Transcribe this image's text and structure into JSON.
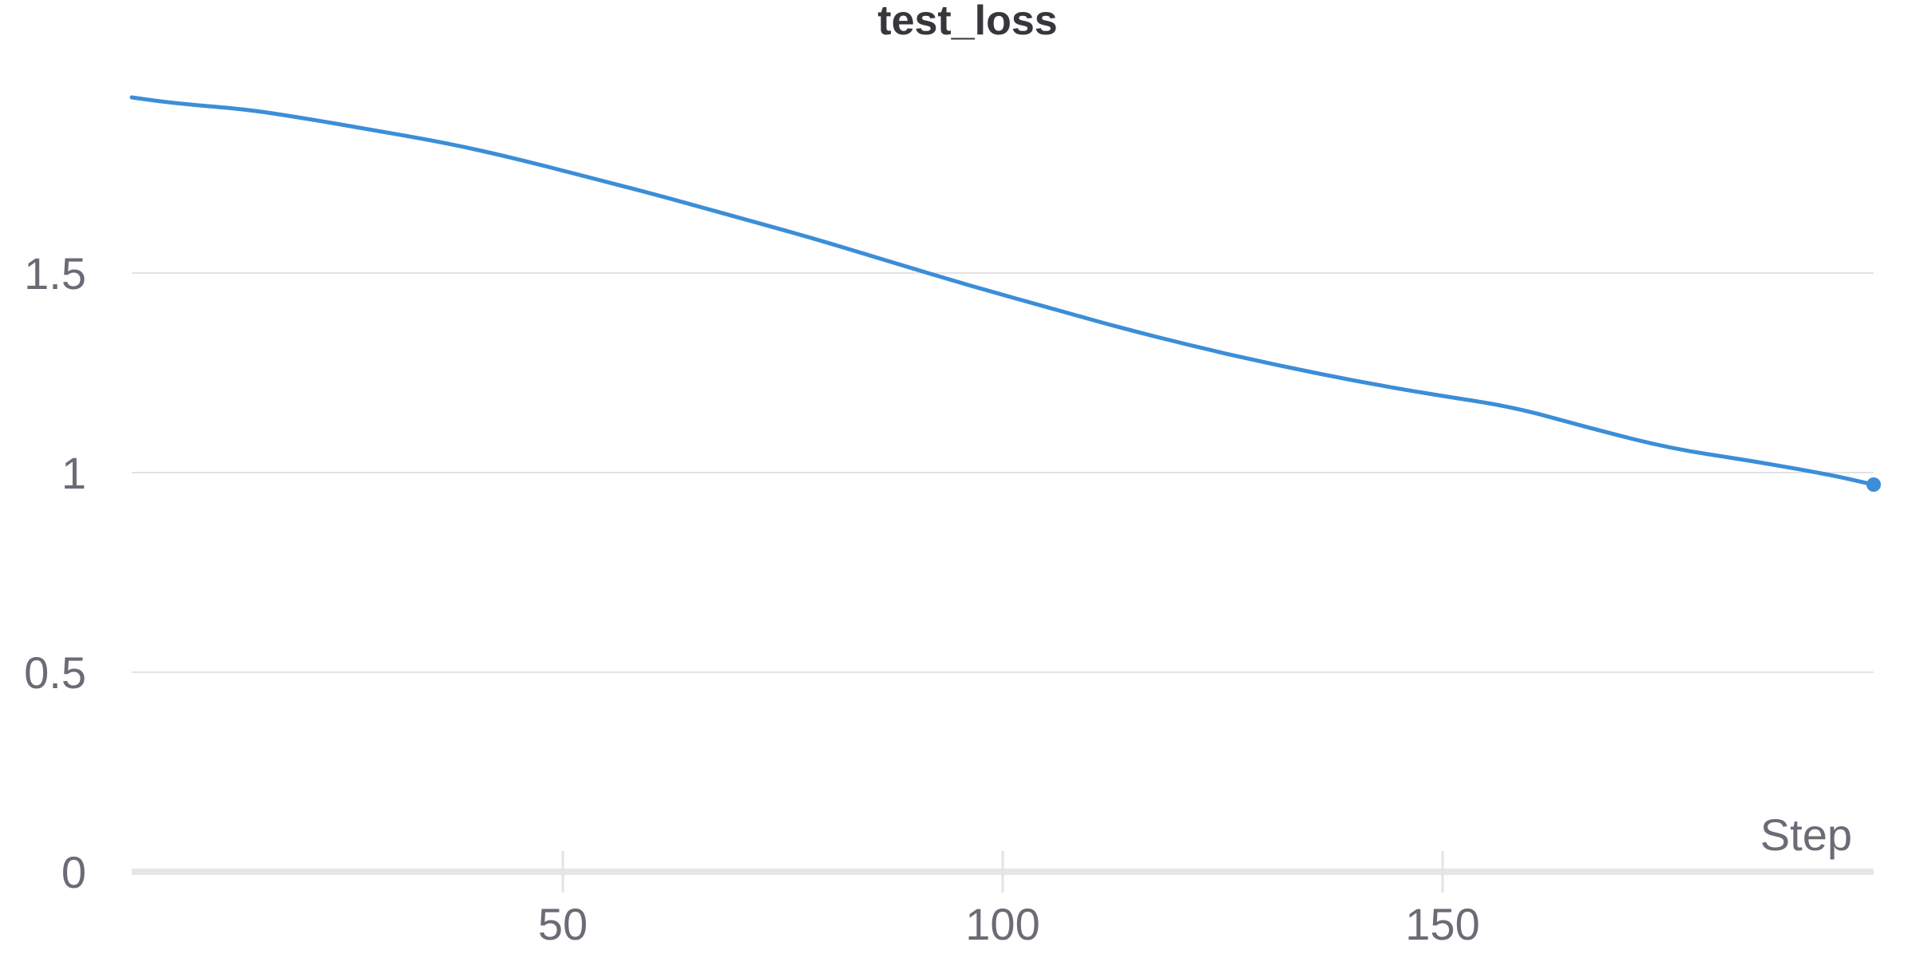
{
  "chart_data": {
    "type": "line",
    "title": "test_loss",
    "xlabel": "Step",
    "ylabel": "",
    "xlim": [
      1,
      199
    ],
    "ylim": [
      0,
      2.0
    ],
    "x_ticks": [
      50,
      100,
      150
    ],
    "x_tick_labels": [
      "50",
      "100",
      "150"
    ],
    "y_ticks": [
      0,
      0.5,
      1,
      1.5
    ],
    "y_tick_labels": [
      "0",
      "0.5",
      "1",
      "1.5"
    ],
    "grid": true,
    "color": "#3b8ed7",
    "series": [
      {
        "x": [
          1,
          6,
          14,
          20,
          28,
          37,
          45,
          52,
          60,
          69,
          78,
          87,
          96,
          105,
          113,
          122,
          131,
          140,
          149,
          158,
          167,
          176,
          185,
          194,
          199
        ],
        "y": [
          1.94,
          1.925,
          1.91,
          1.89,
          1.86,
          1.825,
          1.785,
          1.745,
          1.7,
          1.645,
          1.59,
          1.53,
          1.47,
          1.415,
          1.365,
          1.315,
          1.27,
          1.23,
          1.195,
          1.165,
          1.11,
          1.06,
          1.03,
          0.995,
          0.97
        ],
        "end_marker": true
      }
    ]
  }
}
